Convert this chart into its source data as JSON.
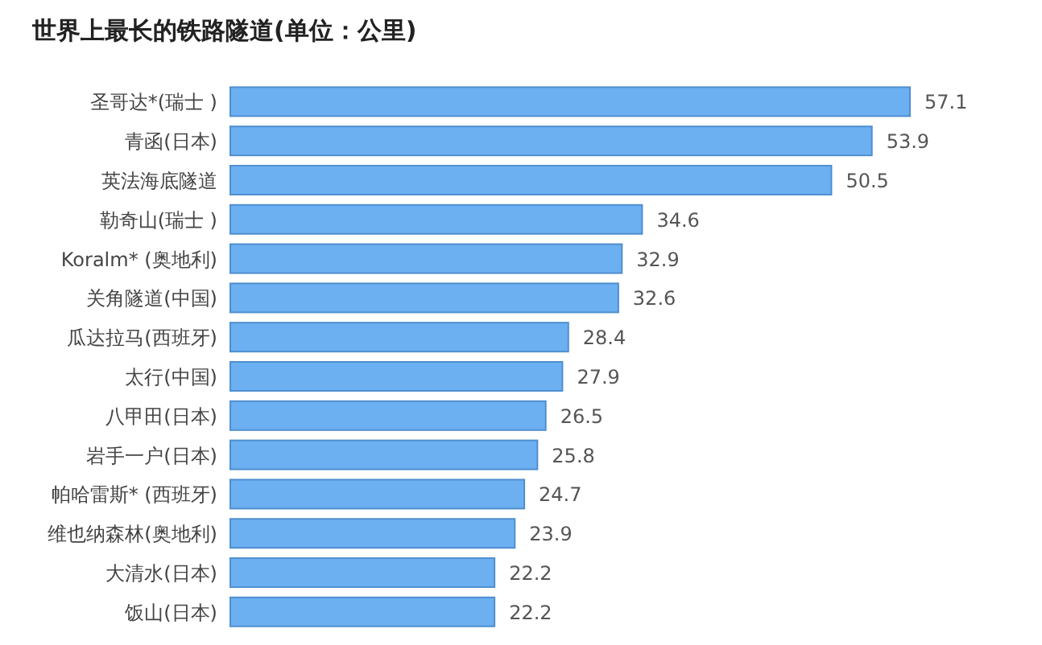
{
  "chart_data": {
    "type": "bar",
    "orientation": "horizontal",
    "title": "世界上最长的铁路隧道(单位：公里)",
    "categories": [
      "圣哥达*(瑞士 )",
      "青函(日本)",
      "英法海底隧道",
      "勒奇山(瑞士 )",
      "Koralm* (奥地利)",
      "关角隧道(中国)",
      "瓜达拉马(西班牙)",
      "太行(中国)",
      "八甲田(日本)",
      "岩手一户(日本)",
      "帕哈雷斯* (西班牙)",
      "维也纳森林(奥地利)",
      "大清水(日本)",
      "饭山(日本)"
    ],
    "values": [
      57.1,
      53.9,
      50.5,
      34.6,
      32.9,
      32.6,
      28.4,
      27.9,
      26.5,
      25.8,
      24.7,
      23.9,
      22.2,
      22.2
    ],
    "color": "#6cb0f2",
    "data_labels": true
  }
}
